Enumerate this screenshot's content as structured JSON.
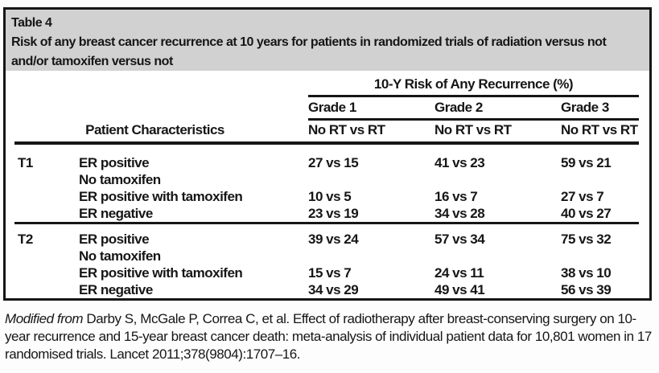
{
  "colors": {
    "ink": "#161616",
    "title-bg": "#d1d1d1"
  },
  "table": {
    "label": "Table 4",
    "caption": "Risk of any breast cancer recurrence at 10 years for patients in randomized trials of radiation versus not and/or tamoxifen versus not",
    "header": {
      "spanner": "10-Y Risk of Any Recurrence (%)",
      "stub_label": "Patient Characteristics",
      "columns": [
        {
          "grade": "Grade 1",
          "arms": "No RT vs RT"
        },
        {
          "grade": "Grade 2",
          "arms": "No RT vs RT"
        },
        {
          "grade": "Grade 3",
          "arms": "No RT vs RT"
        }
      ]
    },
    "sections": [
      {
        "stage": "T1",
        "rows": [
          {
            "label": "ER positive",
            "label_line2": "No tamoxifen",
            "grade1": "27 vs 15",
            "grade2": "41 vs 23",
            "grade3": "59 vs 21"
          },
          {
            "label": "ER positive with tamoxifen",
            "grade1": "10 vs 5",
            "grade2": "16 vs 7",
            "grade3": "27 vs 7"
          },
          {
            "label": "ER negative",
            "grade1": "23 vs 19",
            "grade2": "34 vs 28",
            "grade3": "40 vs 27"
          }
        ]
      },
      {
        "stage": "T2",
        "rows": [
          {
            "label": "ER positive",
            "label_line2": "No tamoxifen",
            "grade1": "39 vs 24",
            "grade2": "57 vs 34",
            "grade3": "75 vs 32"
          },
          {
            "label": "ER positive with tamoxifen",
            "grade1": "15 vs 7",
            "grade2": "24 vs 11",
            "grade3": "38 vs 10"
          },
          {
            "label": "ER negative",
            "grade1": "34 vs 29",
            "grade2": "49 vs 41",
            "grade3": "56 vs 39"
          }
        ]
      }
    ]
  },
  "footnote": {
    "lead": "Modified from",
    "text": "Darby S, McGale P, Correa C, et al. Effect of radiotherapy after breast-conserving surgery on 10-year recurrence and 15-year breast cancer death: meta-analysis of individual patient data for 10,801 women in 17 randomised trials. Lancet 2011;378(9804):1707–16."
  }
}
